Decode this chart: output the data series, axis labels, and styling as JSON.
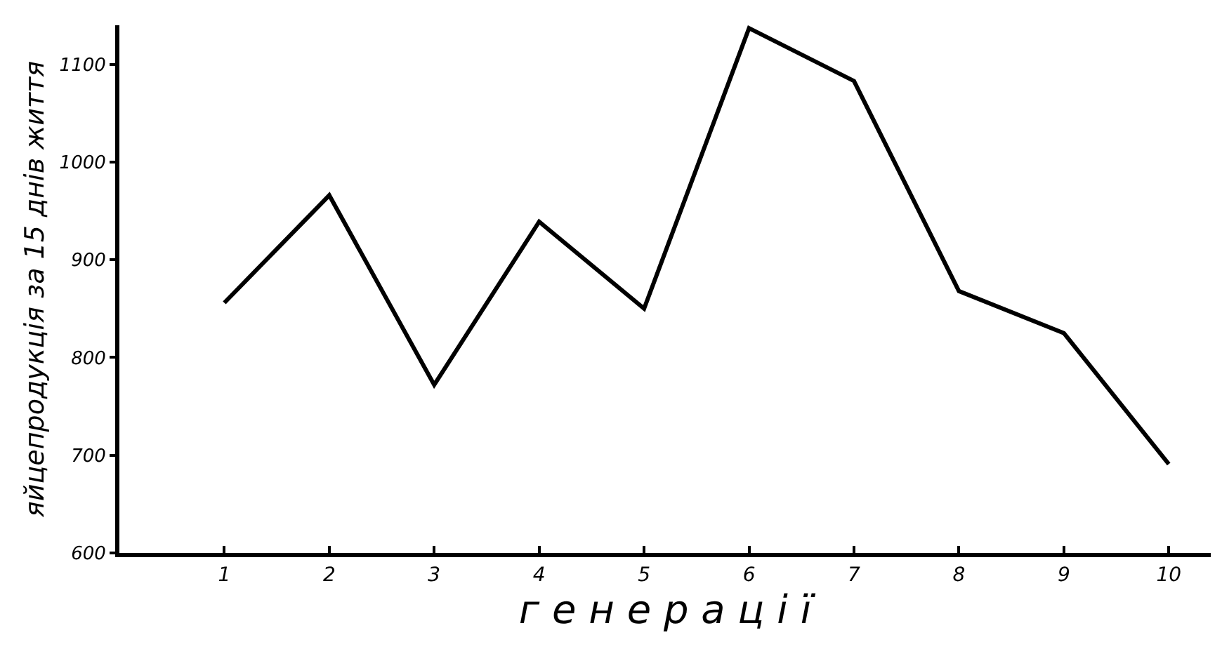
{
  "chart_data": {
    "type": "line",
    "xlabel": "г е н е р а ц і ї",
    "ylabel": "яйцепродукція за 15 днів життя",
    "x": [
      1,
      2,
      3,
      4,
      5,
      6,
      7,
      8,
      9,
      10
    ],
    "series": [
      {
        "color": "#000000",
        "values": [
          856,
          966,
          772,
          939,
          850,
          1137,
          1083,
          868,
          825,
          691
        ]
      }
    ],
    "xlim": [
      0,
      10.4
    ],
    "xticks": [
      1,
      2,
      3,
      4,
      5,
      6,
      7,
      8,
      9,
      10
    ],
    "ylim": [
      600,
      1140
    ],
    "yticks": [
      600,
      700,
      800,
      900,
      1000,
      1100
    ],
    "grid": false,
    "legend": false,
    "marker": "none",
    "line_style": "solid"
  }
}
